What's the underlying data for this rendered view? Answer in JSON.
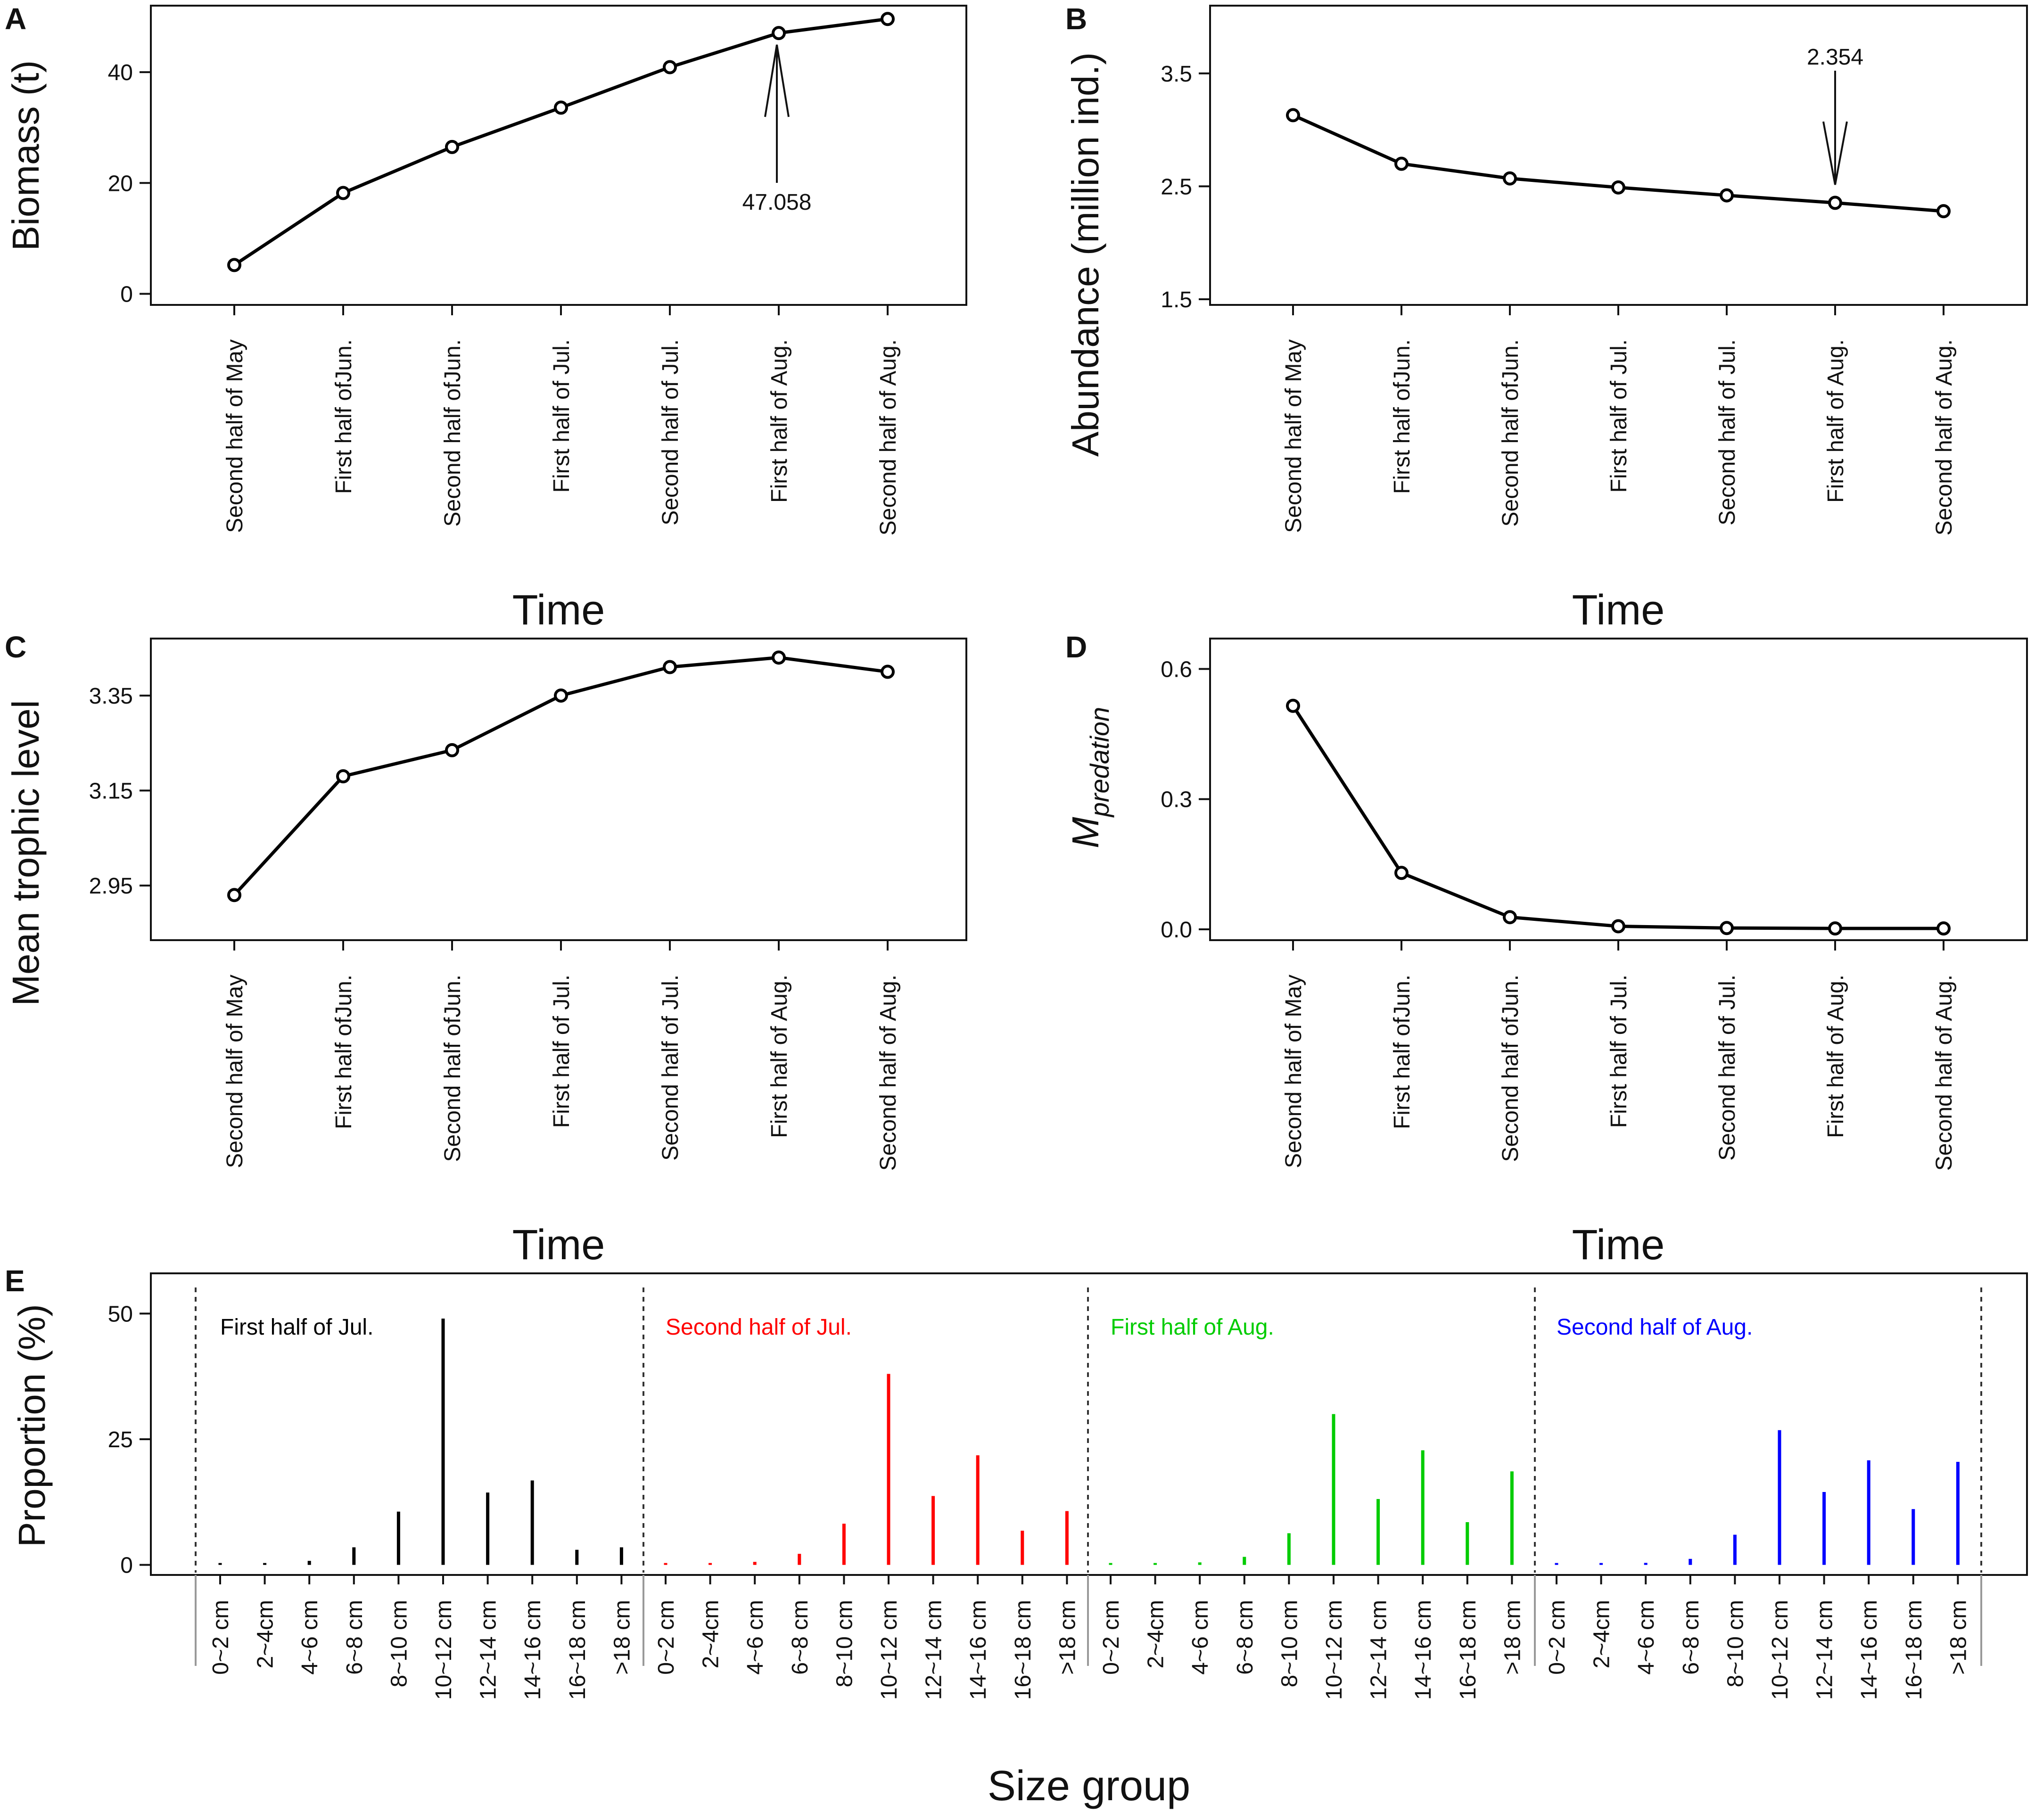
{
  "chart_data": [
    {
      "panel": "A",
      "type": "line",
      "categories": [
        "Second half of May",
        "First half ofJun.",
        "Second half ofJun.",
        "First half of Jul.",
        "Second half of Jul.",
        "First half of Aug.",
        "Second half of Aug."
      ],
      "values": [
        5.2,
        18.2,
        26.5,
        33.6,
        40.9,
        47.058,
        49.6
      ],
      "yticks": [
        "0",
        "20",
        "40"
      ],
      "ylim": [
        -2,
        52
      ],
      "ylabel": "Biomass (t)",
      "xlabel": "Time",
      "annotation": {
        "label": "47.058",
        "category_index": 5
      }
    },
    {
      "panel": "B",
      "type": "line",
      "categories": [
        "Second half of May",
        "First half ofJun.",
        "Second half ofJun.",
        "First half of Jul.",
        "Second half of Jul.",
        "First half of Aug.",
        "Second half of Aug."
      ],
      "values": [
        3.13,
        2.7,
        2.57,
        2.49,
        2.42,
        2.354,
        2.28
      ],
      "yticks": [
        "1.5",
        "2.5",
        "3.5"
      ],
      "ylim": [
        1.45,
        4.1
      ],
      "ylabel": "Abundance (million ind.)",
      "xlabel": "Time",
      "annotation": {
        "label": "2.354",
        "category_index": 5
      }
    },
    {
      "panel": "C",
      "type": "line",
      "categories": [
        "Second half of May",
        "First half ofJun.",
        "Second half ofJun.",
        "First half of Jul.",
        "Second half of Jul.",
        "First half of Aug.",
        "Second half of Aug."
      ],
      "values": [
        2.93,
        3.18,
        3.235,
        3.35,
        3.41,
        3.43,
        3.4
      ],
      "yticks": [
        "2.95",
        "3.15",
        "3.35"
      ],
      "ylim": [
        2.835,
        3.47
      ],
      "ylabel": "Mean trophic level",
      "xlabel": "Time"
    },
    {
      "panel": "D",
      "type": "line",
      "categories": [
        "Second half of May",
        "First half ofJun.",
        "Second half ofJun.",
        "First half of Jul.",
        "Second half of Jul.",
        "First half of Aug.",
        "Second half of Aug."
      ],
      "values": [
        0.515,
        0.13,
        0.028,
        0.007,
        0.003,
        0.002,
        0.002
      ],
      "yticks": [
        "0.0",
        "0.3",
        "0.6"
      ],
      "ylim": [
        -0.025,
        0.67
      ],
      "ylabel_main": "M",
      "ylabel_sub": "predation",
      "xlabel": "Time"
    },
    {
      "panel": "E",
      "type": "bar",
      "categories": [
        "0~2 cm",
        "2~4cm",
        "4~6 cm",
        "6~8 cm",
        "8~10 cm",
        "10~12 cm",
        "12~14 cm",
        "14~16 cm",
        "16~18 cm",
        ">18 cm"
      ],
      "series": [
        {
          "name": "First half of Jul.",
          "color": "#000000",
          "values": [
            0.3,
            0.3,
            0.8,
            3.5,
            10.6,
            49.0,
            14.4,
            16.8,
            3.0,
            3.5
          ]
        },
        {
          "name": "Second half of Jul.",
          "color": "#ff0000",
          "values": [
            0.3,
            0.3,
            0.6,
            2.2,
            8.2,
            38.0,
            13.7,
            21.8,
            6.8,
            10.7
          ]
        },
        {
          "name": "First half of Aug.",
          "color": "#00cc00",
          "values": [
            0.3,
            0.3,
            0.5,
            1.6,
            6.3,
            30.0,
            13.1,
            22.8,
            8.5,
            18.6
          ]
        },
        {
          "name": "Second half of Aug.",
          "color": "#0000ff",
          "values": [
            0.3,
            0.3,
            0.4,
            1.2,
            6.0,
            26.8,
            14.5,
            20.8,
            11.1,
            20.5
          ]
        }
      ],
      "yticks": [
        "0",
        "25",
        "50"
      ],
      "ylim": [
        -2,
        58
      ],
      "ylabel": "Proportion  (%)",
      "xlabel": "Size group"
    }
  ]
}
